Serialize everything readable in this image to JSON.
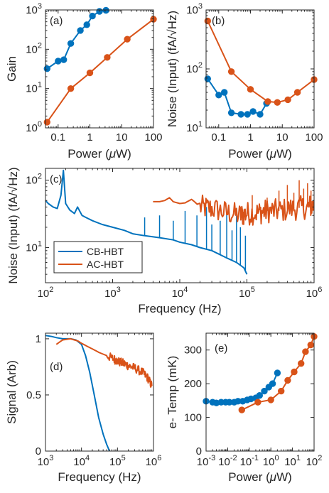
{
  "colors": {
    "series1": "#0072BD",
    "series2": "#D95319",
    "axis": "#262626"
  },
  "chart_data": [
    {
      "id": "a",
      "type": "line",
      "panel_label": "(a)",
      "xlabel_pre": "Power (",
      "xlabel_unit": "μ",
      "xlabel_post": "W)",
      "ylabel": "Gain",
      "xscale": "log",
      "yscale": "log",
      "xlim": [
        0.04,
        100
      ],
      "ylim": [
        1,
        1000
      ],
      "xticks": [
        {
          "v": 0.1,
          "label": "0.1"
        },
        {
          "v": 1,
          "label": "1"
        },
        {
          "v": 10,
          "label": "10"
        },
        {
          "v": 100,
          "label": "100"
        }
      ],
      "yticks": [
        {
          "v": 1,
          "b": "10",
          "e": "0"
        },
        {
          "v": 10,
          "b": "10",
          "e": "1"
        },
        {
          "v": 100,
          "b": "10",
          "e": "2"
        },
        {
          "v": 1000,
          "b": "10",
          "e": "3"
        }
      ],
      "series": [
        {
          "color": "#0072BD",
          "markers": true,
          "x": [
            0.045,
            0.1,
            0.15,
            0.25,
            0.5,
            0.8,
            1.2,
            2.0,
            3.2
          ],
          "y": [
            32,
            50,
            54,
            140,
            300,
            420,
            700,
            920,
            980
          ]
        },
        {
          "color": "#D95319",
          "markers": true,
          "x": [
            0.045,
            0.25,
            1.0,
            3.5,
            15,
            100
          ],
          "y": [
            1.4,
            10,
            25,
            62,
            180,
            580
          ]
        }
      ]
    },
    {
      "id": "b",
      "type": "line",
      "panel_label": "(b)",
      "xlabel_pre": "Power (",
      "xlabel_unit": "μ",
      "xlabel_post": "W)",
      "ylabel": "Noise (Input) (fA/√Hz)",
      "xscale": "log",
      "yscale": "log",
      "xlim": [
        0.04,
        100
      ],
      "ylim": [
        10,
        1000
      ],
      "xticks": [
        {
          "v": 0.1,
          "label": "0.1"
        },
        {
          "v": 1,
          "label": "1"
        },
        {
          "v": 10,
          "label": "10"
        },
        {
          "v": 100,
          "label": "100"
        }
      ],
      "yticks": [
        {
          "v": 10,
          "b": "10",
          "e": "1"
        },
        {
          "v": 100,
          "b": "10",
          "e": "2"
        },
        {
          "v": 1000,
          "b": "10",
          "e": "3"
        }
      ],
      "series": [
        {
          "color": "#0072BD",
          "markers": true,
          "x": [
            0.045,
            0.1,
            0.15,
            0.25,
            0.5,
            0.8,
            1.2,
            2.0,
            3.2
          ],
          "y": [
            68,
            36,
            40,
            18,
            17,
            17,
            19,
            17,
            26
          ]
        },
        {
          "color": "#D95319",
          "markers": true,
          "x": [
            0.045,
            0.25,
            1.0,
            3.5,
            7,
            15,
            30,
            100
          ],
          "y": [
            650,
            90,
            45,
            28,
            27,
            30,
            40,
            66
          ]
        }
      ]
    },
    {
      "id": "c",
      "type": "line",
      "panel_label": "(c)",
      "xlabel": "Frequency (Hz)",
      "ylabel": "Noise (Input) (fA/√Hz)",
      "xscale": "log",
      "yscale": "log",
      "xlim": [
        100,
        1000000
      ],
      "ylim": [
        3,
        150
      ],
      "xticks": [
        {
          "v": 100,
          "b": "10",
          "e": "2"
        },
        {
          "v": 1000,
          "b": "10",
          "e": "3"
        },
        {
          "v": 10000,
          "b": "10",
          "e": "4"
        },
        {
          "v": 100000,
          "b": "10",
          "e": "5"
        },
        {
          "v": 1000000,
          "b": "10",
          "e": "6"
        }
      ],
      "yticks": [
        {
          "v": 10,
          "b": "10",
          "e": "1"
        },
        {
          "v": 100,
          "b": "10",
          "e": "2"
        }
      ],
      "legend": [
        "CB-HBT",
        "AC-HBT"
      ],
      "series": [
        {
          "name": "CB-HBT",
          "color": "#0072BD",
          "x": [
            100,
            110,
            130,
            150,
            170,
            185,
            200,
            230,
            270,
            300,
            350,
            400,
            500,
            700,
            1000,
            1500,
            2000,
            3000,
            5000,
            8000,
            10000,
            15000,
            20000,
            30000,
            50000,
            70000,
            90000,
            100000
          ],
          "y": [
            50,
            45,
            40,
            38,
            60,
            140,
            45,
            36,
            32,
            40,
            30,
            28,
            25,
            22,
            20,
            18,
            16,
            15,
            14,
            13,
            12,
            11,
            10,
            9,
            7,
            6,
            5,
            4
          ],
          "spikes": [
            [
              3000,
              28
            ],
            [
              5000,
              30
            ],
            [
              8000,
              25
            ],
            [
              12000,
              35
            ],
            [
              18000,
              30
            ],
            [
              25000,
              40
            ],
            [
              30000,
              22
            ],
            [
              40000,
              25
            ],
            [
              50000,
              32
            ],
            [
              60000,
              18
            ],
            [
              70000,
              30
            ],
            [
              80000,
              20
            ],
            [
              95000,
              15
            ]
          ]
        },
        {
          "name": "AC-HBT",
          "color": "#D95319",
          "x": [
            4000,
            5000,
            6000,
            7000,
            8000,
            10000,
            12000,
            15000,
            20000,
            30000,
            50000,
            80000,
            100000,
            150000,
            200000,
            300000,
            500000,
            800000,
            1000000
          ],
          "y": [
            48,
            48,
            50,
            55,
            48,
            45,
            46,
            52,
            40,
            38,
            33,
            30,
            32,
            33,
            35,
            35,
            38,
            40,
            42
          ],
          "noisy_from": 20000,
          "noise_amp": 0.18,
          "spikes": [
            [
              120000,
              60
            ],
            [
              200000,
              55
            ],
            [
              300000,
              70
            ],
            [
              400000,
              85
            ],
            [
              500000,
              65
            ],
            [
              600000,
              100
            ],
            [
              700000,
              75
            ],
            [
              800000,
              90
            ],
            [
              900000,
              70
            ]
          ]
        }
      ]
    },
    {
      "id": "d",
      "type": "line",
      "panel_label": "(d)",
      "xlabel": "Frequency (Hz)",
      "ylabel": "Signal (Arb)",
      "xscale": "log",
      "yscale": "linear",
      "xlim": [
        1000,
        1000000
      ],
      "ylim": [
        0,
        1.05
      ],
      "xticks": [
        {
          "v": 1000,
          "b": "10",
          "e": "3"
        },
        {
          "v": 10000,
          "b": "10",
          "e": "4"
        },
        {
          "v": 100000,
          "b": "10",
          "e": "5"
        },
        {
          "v": 1000000,
          "b": "10",
          "e": "6"
        }
      ],
      "yticks": [
        {
          "v": 0,
          "label": "0"
        },
        {
          "v": 0.5,
          "label": "0.5"
        },
        {
          "v": 1,
          "label": "1"
        }
      ],
      "series": [
        {
          "color": "#0072BD",
          "x": [
            1000,
            1500,
            2000,
            3000,
            5000,
            7000,
            10000,
            13000,
            17000,
            22000,
            30000,
            40000,
            50000,
            60000
          ],
          "y": [
            1.03,
            1.02,
            1.01,
            1.0,
            1.0,
            0.99,
            0.95,
            0.85,
            0.7,
            0.52,
            0.3,
            0.15,
            0.06,
            0.0
          ]
        },
        {
          "color": "#D95319",
          "x": [
            2000,
            3000,
            5000,
            8000,
            10000,
            15000,
            20000,
            30000,
            50000,
            80000,
            100000,
            150000,
            200000,
            300000,
            500000,
            700000,
            900000
          ],
          "y": [
            0.95,
            0.99,
            1.0,
            0.98,
            0.96,
            0.93,
            0.91,
            0.88,
            0.85,
            0.82,
            0.8,
            0.78,
            0.76,
            0.74,
            0.7,
            0.65,
            0.58
          ],
          "noisy_from": 50000,
          "noise_amp": 0.04
        }
      ]
    },
    {
      "id": "e",
      "type": "line",
      "panel_label": "(e)",
      "xlabel_pre": "Power (",
      "xlabel_unit": "μ",
      "xlabel_post": "W)",
      "ylabel": "e- Temp (mK)",
      "xscale": "log",
      "yscale": "linear",
      "xlim": [
        0.001,
        100
      ],
      "ylim": [
        0,
        350
      ],
      "xticks": [
        {
          "v": 0.001,
          "b": "10",
          "e": "-3"
        },
        {
          "v": 0.01,
          "b": "10",
          "e": "-2"
        },
        {
          "v": 0.1,
          "b": "10",
          "e": "-1"
        },
        {
          "v": 1,
          "b": "10",
          "e": "0"
        },
        {
          "v": 10,
          "b": "10",
          "e": "1"
        },
        {
          "v": 100,
          "b": "10",
          "e": "2"
        }
      ],
      "yticks": [
        {
          "v": 0,
          "label": "0"
        },
        {
          "v": 100,
          "label": "100"
        },
        {
          "v": 200,
          "label": "200"
        },
        {
          "v": 300,
          "label": "300"
        }
      ],
      "series": [
        {
          "color": "#0072BD",
          "markers": true,
          "x": [
            0.001,
            0.002,
            0.003,
            0.005,
            0.008,
            0.012,
            0.02,
            0.03,
            0.05,
            0.08,
            0.12,
            0.2,
            0.3,
            0.5,
            0.8,
            1.2,
            2.0
          ],
          "y": [
            148,
            145,
            143,
            145,
            145,
            145,
            145,
            148,
            148,
            152,
            155,
            158,
            165,
            178,
            190,
            200,
            232
          ]
        },
        {
          "color": "#D95319",
          "markers": true,
          "x": [
            0.045,
            0.25,
            1.0,
            3.0,
            6.0,
            12,
            25,
            40,
            70,
            100
          ],
          "y": [
            122,
            145,
            152,
            178,
            210,
            235,
            260,
            295,
            315,
            340
          ]
        }
      ]
    }
  ]
}
